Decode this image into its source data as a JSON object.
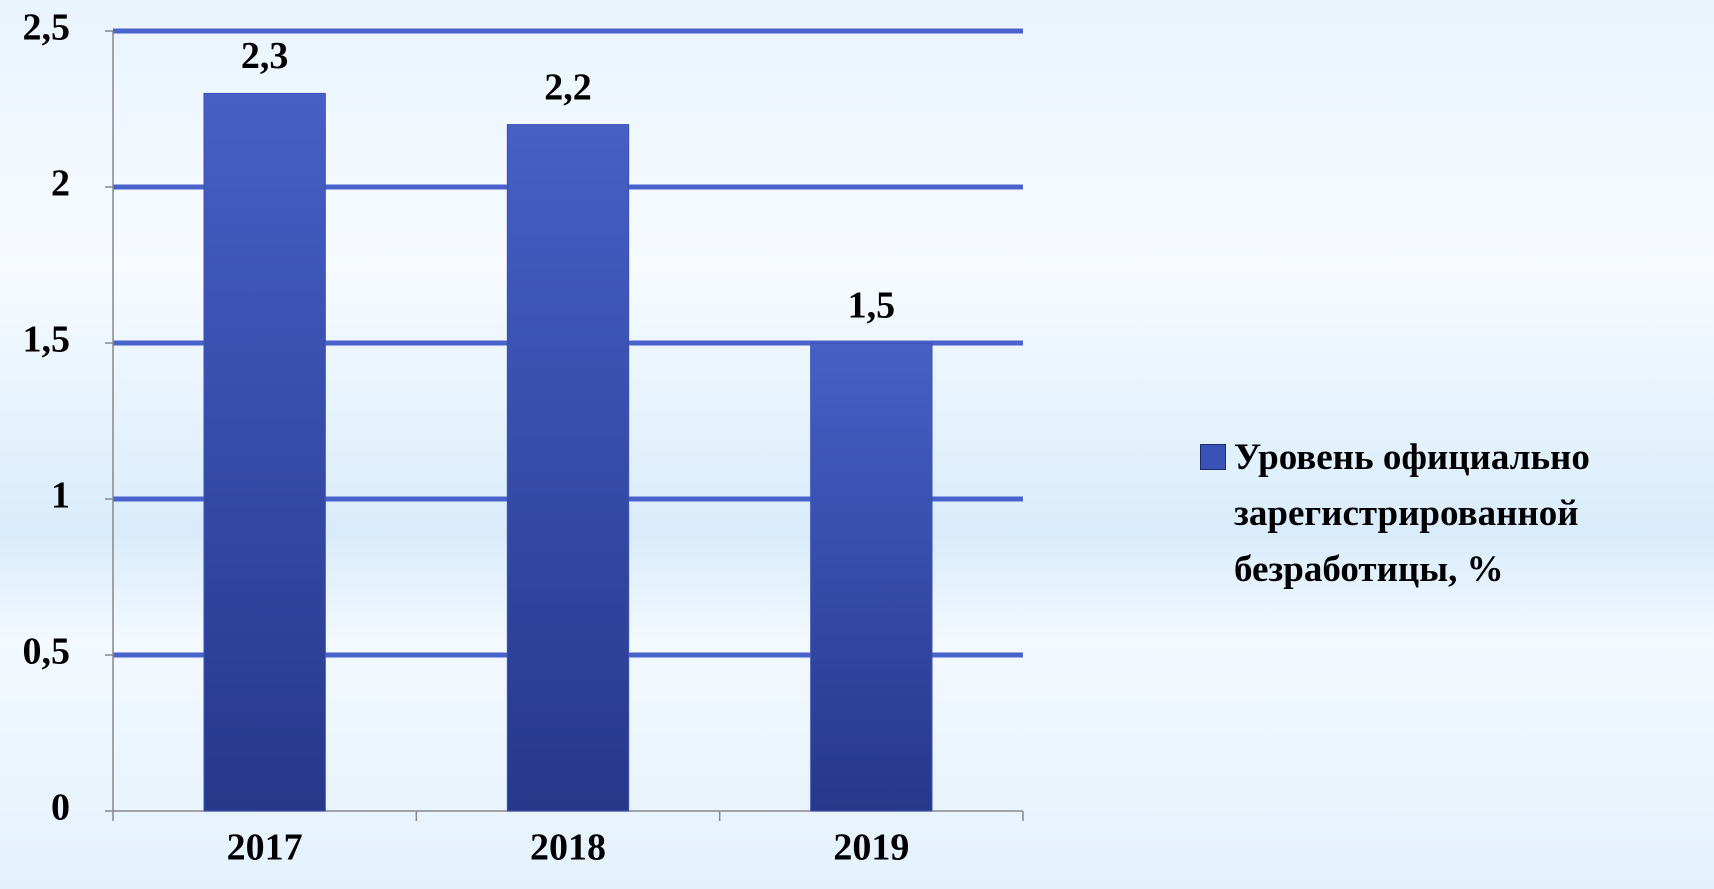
{
  "chart_data": {
    "type": "bar",
    "categories": [
      "2017",
      "2018",
      "2019"
    ],
    "series": [
      {
        "name": "Уровень официально зарегистрированной безработицы, %",
        "color": "#3a51b6",
        "values": [
          2.3,
          2.2,
          1.5
        ],
        "value_labels": [
          "2,3",
          "2,2",
          "1,5"
        ]
      }
    ],
    "ylim": [
      0,
      2.5
    ],
    "yticks": [
      0,
      {
        "value": 0.5,
        "label": "0,5"
      },
      1,
      {
        "value": 1.5,
        "label": "1,5"
      },
      2,
      {
        "value": 2.5,
        "label": "2,5"
      }
    ],
    "grid": true,
    "legend": "right"
  }
}
